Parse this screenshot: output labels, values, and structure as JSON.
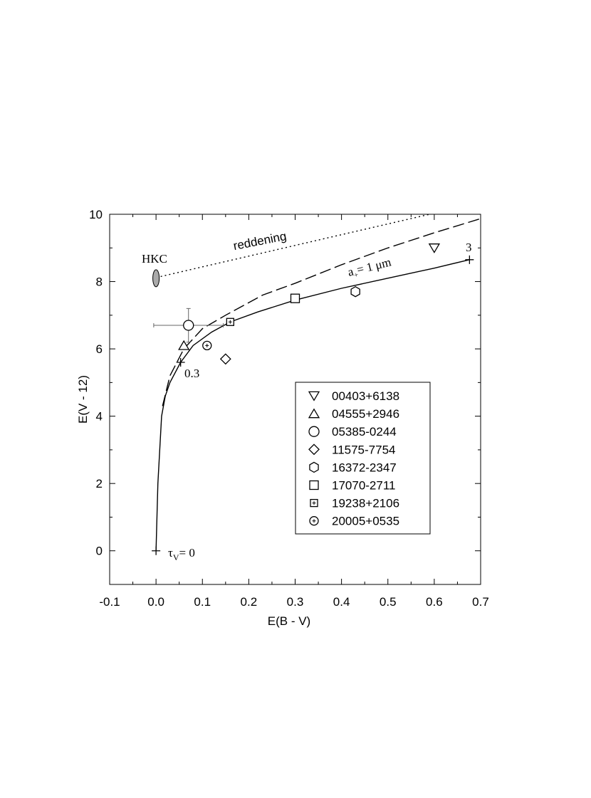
{
  "chart_data": {
    "type": "scatter",
    "xlabel": "E(B - V)",
    "ylabel": "E(V - 12)",
    "xlim": [
      -0.1,
      0.7
    ],
    "ylim": [
      -1,
      10
    ],
    "xticks": [
      -0.1,
      {
        "value": 0,
        "label": "0.0"
      },
      0.1,
      0.2,
      0.3,
      0.4,
      0.5,
      0.6,
      0.7
    ],
    "yticks": [
      0,
      2,
      4,
      6,
      8,
      10
    ],
    "xminor": [
      -0.05,
      0.05,
      0.15,
      0.25,
      0.35,
      0.45,
      0.55,
      0.65
    ],
    "yminor": [
      -1,
      1,
      3,
      5,
      7,
      9
    ],
    "color": "#000000",
    "series": [
      {
        "name": "00403+6138",
        "marker": "triangle-down",
        "x": [
          0.6
        ],
        "values": [
          9.0
        ]
      },
      {
        "name": "04555+2946",
        "marker": "triangle-up",
        "x": [
          0.06
        ],
        "values": [
          6.1
        ]
      },
      {
        "name": "05385-0244",
        "marker": "circle",
        "x": [
          0.07
        ],
        "values": [
          6.7
        ],
        "xerr": [
          0.075
        ],
        "yerr": [
          0.5
        ]
      },
      {
        "name": "11575-7754",
        "marker": "diamond",
        "x": [
          0.15
        ],
        "values": [
          5.7
        ]
      },
      {
        "name": "16372-2347",
        "marker": "hexagon",
        "x": [
          0.43
        ],
        "values": [
          7.7
        ]
      },
      {
        "name": "17070-2711",
        "marker": "square",
        "x": [
          0.3
        ],
        "values": [
          7.5
        ]
      },
      {
        "name": "19238+2106",
        "marker": "square-plus",
        "x": [
          0.16
        ],
        "values": [
          6.8
        ]
      },
      {
        "name": "20005+0535",
        "marker": "circle-plus",
        "x": [
          0.11
        ],
        "values": [
          6.1
        ]
      }
    ],
    "curves": [
      {
        "style": "solid",
        "x": [
          0,
          0.002,
          0.004,
          0.008,
          0.012,
          0.02,
          0.03,
          0.053,
          0.08,
          0.12,
          0.16,
          0.22,
          0.3,
          0.4,
          0.5,
          0.6,
          0.676
        ],
        "values": [
          0,
          1,
          2,
          3,
          4,
          4.6,
          5.0,
          5.6,
          6.1,
          6.5,
          6.8,
          7.1,
          7.45,
          7.8,
          8.1,
          8.4,
          8.65
        ]
      },
      {
        "style": "dashed",
        "x": [
          0.014,
          0.03,
          0.06,
          0.1,
          0.15,
          0.23,
          0.3,
          0.4,
          0.5,
          0.6,
          0.7
        ],
        "values": [
          4.3,
          5.2,
          6.0,
          6.6,
          7.0,
          7.6,
          7.95,
          8.5,
          9.0,
          9.45,
          9.87
        ]
      },
      {
        "style": "dotted",
        "x": [
          0.01,
          0.59
        ],
        "values": [
          8.15,
          10
        ]
      }
    ],
    "model_points": {
      "x": [
        0,
        0.053,
        0.676
      ],
      "values": [
        0,
        5.6,
        8.65
      ]
    },
    "tau_label": {
      "symbol": "τ",
      "sub": "V",
      "text": "= 0"
    },
    "point_labels": [
      "0.3",
      "3"
    ],
    "size_label": {
      "symbol": "a",
      "sub": "+",
      "text": "= 1 μm"
    },
    "reddening_label": "reddening",
    "hkc": {
      "label": "HKC",
      "x": 0,
      "y": 8.1,
      "color": "#aaaaaa"
    }
  }
}
